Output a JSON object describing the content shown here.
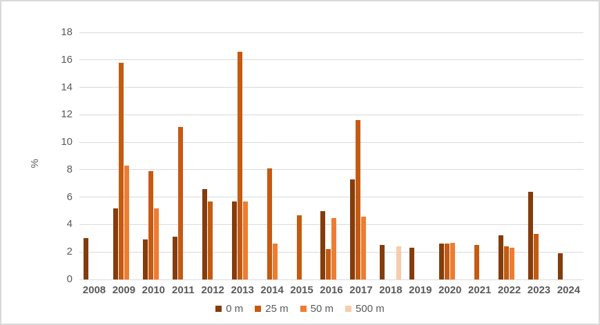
{
  "chart_data": {
    "type": "bar",
    "title": "",
    "xlabel": "",
    "ylabel": "%",
    "ylim": [
      0,
      18
    ],
    "ytick_step": 2,
    "yticks": [
      "0",
      "2",
      "4",
      "6",
      "8",
      "10",
      "12",
      "14",
      "16",
      "18"
    ],
    "grid": true,
    "legend_position": "bottom",
    "categories": [
      "2008",
      "2009",
      "2010",
      "2011",
      "2012",
      "2013",
      "2014",
      "2015",
      "2016",
      "2017",
      "2018",
      "2019",
      "2020",
      "2021",
      "2022",
      "2023",
      "2024"
    ],
    "series": [
      {
        "name": "0 m",
        "color": "#843C0C",
        "values": [
          3.0,
          5.2,
          2.9,
          3.1,
          6.6,
          5.7,
          null,
          null,
          5.0,
          7.3,
          2.5,
          2.3,
          2.6,
          null,
          3.2,
          6.4,
          1.9
        ]
      },
      {
        "name": "25 m",
        "color": "#C55A11",
        "values": [
          null,
          15.8,
          7.9,
          11.1,
          5.7,
          16.6,
          8.1,
          4.7,
          2.2,
          11.6,
          null,
          null,
          2.6,
          2.5,
          2.4,
          3.3,
          null
        ]
      },
      {
        "name": "50 m",
        "color": "#ED7D31",
        "values": [
          null,
          8.3,
          5.2,
          null,
          null,
          5.7,
          2.6,
          null,
          4.5,
          4.6,
          null,
          null,
          2.65,
          null,
          2.3,
          null,
          null
        ]
      },
      {
        "name": "500 m",
        "color": "#F8CBAD",
        "values": [
          null,
          null,
          null,
          null,
          null,
          null,
          null,
          null,
          null,
          null,
          2.4,
          null,
          null,
          null,
          null,
          null,
          null
        ]
      }
    ]
  },
  "style_colors": {
    "axis_text": "#595959",
    "gridline": "#D9D9D9",
    "axis_line": "#D9D9D9",
    "background": "#FFFFFF"
  }
}
